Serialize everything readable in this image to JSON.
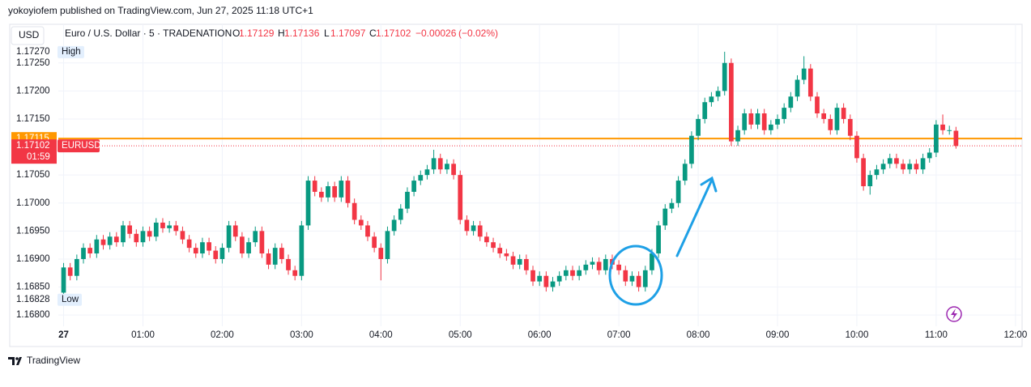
{
  "chart_data": {
    "type": "candlestick",
    "caption": "yokoyiofem published on TradingView.com, Jun 27, 2025 11:18 UTC+1",
    "currency": "USD",
    "title": "Euro / U.S. Dollar · 5 · TRADENATION",
    "ohlc_labels": [
      "O",
      "H",
      "L",
      "C"
    ],
    "ohlc_values": [
      1.17129,
      1.17136,
      1.17097,
      1.17102
    ],
    "change": "−0.00026",
    "change_percent": "(−0.02%)",
    "up_color": "#089981",
    "down_color": "#f23645",
    "grid": true,
    "price_line": {
      "value": 1.17115,
      "color": "#ff9800"
    },
    "last_price": {
      "value": 1.17102,
      "symbol": "EURUSD",
      "countdown": "01:59"
    },
    "high_marker": {
      "value": 1.1727,
      "label": "1.17270",
      "text": "High"
    },
    "low_marker": {
      "value": 1.16828,
      "text": "Low"
    },
    "brand": "TradingView",
    "xlim": [
      -4,
      725
    ],
    "ylim": [
      1.1678,
      1.17319
    ],
    "xticks": [
      {
        "value": 0,
        "label": "27"
      },
      {
        "value": 60,
        "label": "01:00"
      },
      {
        "value": 120,
        "label": "02:00"
      },
      {
        "value": 180,
        "label": "03:00"
      },
      {
        "value": 240,
        "label": "04:00"
      },
      {
        "value": 300,
        "label": "05:00"
      },
      {
        "value": 360,
        "label": "06:00"
      },
      {
        "value": 420,
        "label": "07:00"
      },
      {
        "value": 480,
        "label": "08:00"
      },
      {
        "value": 540,
        "label": "09:00"
      },
      {
        "value": 600,
        "label": "10:00"
      },
      {
        "value": 660,
        "label": "11:00"
      },
      {
        "value": 720,
        "label": "12:00"
      }
    ],
    "yticks": [
      {
        "value": 1.168,
        "label": "1.16800"
      },
      {
        "value": 1.1685,
        "label": "1.16850"
      },
      {
        "value": 1.169,
        "label": "1.16900"
      },
      {
        "value": 1.1695,
        "label": "1.16950"
      },
      {
        "value": 1.17,
        "label": "1.17000"
      },
      {
        "value": 1.1705,
        "label": "1.17050"
      },
      {
        "value": 1.1715,
        "label": "1.17150"
      },
      {
        "value": 1.172,
        "label": "1.17200"
      },
      {
        "value": 1.1725,
        "label": "1.17250"
      }
    ],
    "x": [
      0,
      5,
      10,
      15,
      20,
      25,
      30,
      35,
      40,
      45,
      50,
      55,
      60,
      65,
      70,
      75,
      80,
      85,
      90,
      95,
      100,
      105,
      110,
      115,
      120,
      125,
      130,
      135,
      140,
      145,
      150,
      155,
      160,
      165,
      170,
      175,
      180,
      185,
      190,
      195,
      200,
      205,
      210,
      215,
      220,
      225,
      230,
      235,
      240,
      245,
      250,
      255,
      260,
      265,
      270,
      275,
      280,
      285,
      290,
      295,
      300,
      305,
      310,
      315,
      320,
      325,
      330,
      335,
      340,
      345,
      350,
      355,
      360,
      365,
      370,
      375,
      380,
      385,
      390,
      395,
      400,
      405,
      410,
      415,
      420,
      425,
      430,
      435,
      440,
      445,
      450,
      455,
      460,
      465,
      470,
      475,
      480,
      485,
      490,
      495,
      500,
      505,
      510,
      515,
      520,
      525,
      530,
      535,
      540,
      545,
      550,
      555,
      560,
      565,
      570,
      575,
      580,
      585,
      590,
      595,
      600,
      605,
      610,
      615,
      620,
      625,
      630,
      635,
      640,
      645,
      650,
      655,
      660,
      665,
      670,
      675
    ],
    "open": [
      1.1684,
      1.16885,
      1.1687,
      1.169,
      1.1692,
      1.1691,
      1.16935,
      1.16925,
      1.1694,
      1.1693,
      1.1696,
      1.16945,
      1.1693,
      1.1695,
      1.1694,
      1.16965,
      1.16955,
      1.1696,
      1.1695,
      1.16935,
      1.1692,
      1.1691,
      1.1693,
      1.16915,
      1.169,
      1.1692,
      1.1696,
      1.1694,
      1.1691,
      1.1693,
      1.1695,
      1.1691,
      1.1689,
      1.1692,
      1.169,
      1.1688,
      1.1687,
      1.1696,
      1.1704,
      1.1702,
      1.1701,
      1.1703,
      1.1701,
      1.1704,
      1.17,
      1.1697,
      1.1696,
      1.1694,
      1.1692,
      1.169,
      1.1695,
      1.1697,
      1.1699,
      1.1702,
      1.1704,
      1.1705,
      1.1706,
      1.1708,
      1.1706,
      1.1707,
      1.1705,
      1.1697,
      1.1695,
      1.1696,
      1.1694,
      1.1693,
      1.1692,
      1.1691,
      1.16905,
      1.1689,
      1.169,
      1.1688,
      1.1686,
      1.1687,
      1.1685,
      1.1686,
      1.1687,
      1.1688,
      1.1687,
      1.1688,
      1.1689,
      1.16895,
      1.1688,
      1.169,
      1.1689,
      1.1688,
      1.1686,
      1.1687,
      1.1685,
      1.1688,
      1.1691,
      1.1696,
      1.1699,
      1.17,
      1.1704,
      1.1707,
      1.1712,
      1.1715,
      1.1718,
      1.1719,
      1.172,
      1.1725,
      1.1711,
      1.1713,
      1.1716,
      1.1714,
      1.1716,
      1.1713,
      1.1714,
      1.1715,
      1.1717,
      1.1719,
      1.1722,
      1.1724,
      1.1719,
      1.1716,
      1.1715,
      1.1713,
      1.1717,
      1.1715,
      1.1712,
      1.1708,
      1.1703,
      1.1705,
      1.1706,
      1.1707,
      1.1708,
      1.1707,
      1.1706,
      1.1707,
      1.1706,
      1.1708,
      1.1709,
      1.1714,
      1.1713,
      1.17129
    ],
    "high": [
      1.16893,
      1.16893,
      1.16908,
      1.16928,
      1.16928,
      1.16943,
      1.16943,
      1.16948,
      1.16948,
      1.16968,
      1.16968,
      1.16953,
      1.16958,
      1.16958,
      1.16973,
      1.16973,
      1.16968,
      1.16968,
      1.16958,
      1.16943,
      1.16928,
      1.16938,
      1.16938,
      1.16923,
      1.16928,
      1.16968,
      1.16968,
      1.16948,
      1.16938,
      1.16958,
      1.16958,
      1.16918,
      1.16928,
      1.16928,
      1.16908,
      1.16888,
      1.16968,
      1.17048,
      1.17048,
      1.17028,
      1.17038,
      1.17038,
      1.17048,
      1.17048,
      1.17008,
      1.16978,
      1.16968,
      1.16948,
      1.16928,
      1.16958,
      1.16978,
      1.16998,
      1.17028,
      1.17048,
      1.17058,
      1.17068,
      1.17095,
      1.17088,
      1.17078,
      1.17078,
      1.17058,
      1.16978,
      1.16968,
      1.16968,
      1.16948,
      1.16938,
      1.16928,
      1.16918,
      1.16913,
      1.16908,
      1.16908,
      1.16888,
      1.16878,
      1.16878,
      1.16868,
      1.16878,
      1.16888,
      1.16888,
      1.16888,
      1.16898,
      1.16903,
      1.16903,
      1.16908,
      1.16908,
      1.16898,
      1.16888,
      1.16878,
      1.16878,
      1.16888,
      1.16918,
      1.16968,
      1.16998,
      1.17008,
      1.17048,
      1.17078,
      1.17128,
      1.17158,
      1.17188,
      1.17198,
      1.17208,
      1.1727,
      1.17258,
      1.17138,
      1.17168,
      1.17168,
      1.17168,
      1.17168,
      1.17148,
      1.17158,
      1.17178,
      1.17198,
      1.17228,
      1.17262,
      1.17248,
      1.17198,
      1.17168,
      1.17158,
      1.17178,
      1.17178,
      1.17158,
      1.17128,
      1.17088,
      1.17058,
      1.17068,
      1.17078,
      1.17088,
      1.17088,
      1.17078,
      1.17078,
      1.17078,
      1.17088,
      1.17098,
      1.17148,
      1.17158,
      1.17138,
      1.17136
    ],
    "low": [
      1.16828,
      1.16862,
      1.16862,
      1.16892,
      1.16902,
      1.16902,
      1.16917,
      1.16917,
      1.16922,
      1.16922,
      1.16937,
      1.16922,
      1.16922,
      1.16932,
      1.16932,
      1.16947,
      1.16947,
      1.16942,
      1.16927,
      1.16912,
      1.16902,
      1.16902,
      1.16907,
      1.16892,
      1.16892,
      1.16912,
      1.16932,
      1.16902,
      1.16902,
      1.16922,
      1.16902,
      1.16882,
      1.16882,
      1.16892,
      1.16872,
      1.16862,
      1.16862,
      1.16952,
      1.17012,
      1.17002,
      1.17002,
      1.17002,
      1.17002,
      1.16992,
      1.16962,
      1.16952,
      1.16932,
      1.16912,
      1.16862,
      1.16892,
      1.16942,
      1.16962,
      1.16982,
      1.17012,
      1.17032,
      1.17042,
      1.17052,
      1.17052,
      1.17052,
      1.17042,
      1.16962,
      1.16942,
      1.16942,
      1.16932,
      1.16922,
      1.16912,
      1.16902,
      1.16897,
      1.16882,
      1.16882,
      1.16872,
      1.16852,
      1.16852,
      1.16842,
      1.16842,
      1.16852,
      1.16862,
      1.16862,
      1.16862,
      1.16872,
      1.16882,
      1.16872,
      1.16872,
      1.16882,
      1.16872,
      1.16852,
      1.16852,
      1.16842,
      1.16842,
      1.16872,
      1.16902,
      1.16952,
      1.16982,
      1.16992,
      1.17032,
      1.17062,
      1.17112,
      1.17142,
      1.17172,
      1.17182,
      1.17192,
      1.17102,
      1.17102,
      1.17122,
      1.17132,
      1.17132,
      1.17122,
      1.17122,
      1.17132,
      1.17142,
      1.17162,
      1.17182,
      1.17212,
      1.17182,
      1.17152,
      1.17142,
      1.17122,
      1.17122,
      1.17142,
      1.17112,
      1.17072,
      1.17022,
      1.17015,
      1.17042,
      1.17052,
      1.17062,
      1.17062,
      1.17052,
      1.17052,
      1.17052,
      1.17052,
      1.17072,
      1.17082,
      1.17122,
      1.17122,
      1.17097
    ],
    "close": [
      1.16885,
      1.1687,
      1.169,
      1.1692,
      1.1691,
      1.16935,
      1.16925,
      1.1694,
      1.1693,
      1.1696,
      1.16945,
      1.1693,
      1.1695,
      1.1694,
      1.16965,
      1.16955,
      1.1696,
      1.1695,
      1.16935,
      1.1692,
      1.1691,
      1.1693,
      1.16915,
      1.169,
      1.1692,
      1.1696,
      1.1694,
      1.1691,
      1.1693,
      1.1695,
      1.1691,
      1.1689,
      1.1692,
      1.169,
      1.1688,
      1.1687,
      1.1696,
      1.1704,
      1.1702,
      1.1701,
      1.1703,
      1.1701,
      1.1704,
      1.17,
      1.1697,
      1.1696,
      1.1694,
      1.1692,
      1.169,
      1.1695,
      1.1697,
      1.1699,
      1.1702,
      1.1704,
      1.1705,
      1.1706,
      1.1708,
      1.1706,
      1.1707,
      1.1705,
      1.1697,
      1.1695,
      1.1696,
      1.1694,
      1.1693,
      1.1692,
      1.1691,
      1.16905,
      1.1689,
      1.169,
      1.1688,
      1.1686,
      1.1687,
      1.1685,
      1.1686,
      1.1687,
      1.1688,
      1.1687,
      1.1688,
      1.1689,
      1.16895,
      1.1688,
      1.169,
      1.1689,
      1.1688,
      1.1686,
      1.1687,
      1.1685,
      1.1688,
      1.1691,
      1.1696,
      1.1699,
      1.17,
      1.1704,
      1.1707,
      1.1712,
      1.1715,
      1.1718,
      1.1719,
      1.172,
      1.1725,
      1.1711,
      1.1713,
      1.1716,
      1.1714,
      1.1716,
      1.1713,
      1.1714,
      1.1715,
      1.1717,
      1.1719,
      1.1722,
      1.1724,
      1.1719,
      1.1716,
      1.1715,
      1.1713,
      1.1717,
      1.1715,
      1.1712,
      1.1708,
      1.1703,
      1.1705,
      1.1706,
      1.1707,
      1.1708,
      1.1707,
      1.1706,
      1.1707,
      1.1706,
      1.1708,
      1.1709,
      1.1714,
      1.1713,
      1.1713,
      1.17102
    ]
  }
}
